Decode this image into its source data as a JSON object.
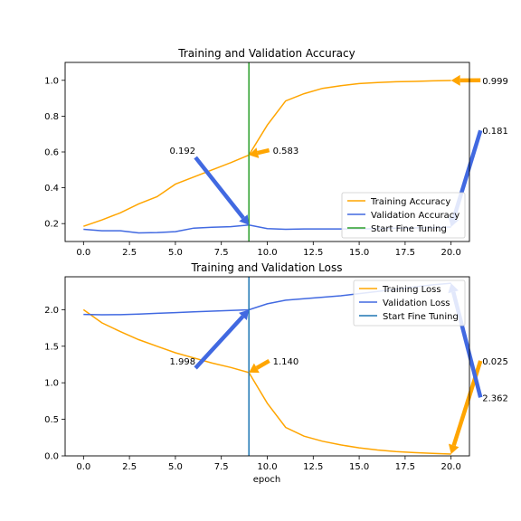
{
  "chart_data": [
    {
      "type": "line",
      "title": "Training and Validation Accuracy",
      "xlabel": "",
      "ylabel": "",
      "xlim": [
        -1,
        21
      ],
      "ylim": [
        0.1,
        1.1
      ],
      "xticks": [
        "0.0",
        "2.5",
        "5.0",
        "7.5",
        "10.0",
        "12.5",
        "15.0",
        "17.5",
        "20.0"
      ],
      "yticks": [
        "0.2",
        "0.4",
        "0.6",
        "0.8",
        "1.0"
      ],
      "x": [
        0,
        1,
        2,
        3,
        4,
        5,
        6,
        7,
        8,
        9,
        10,
        11,
        12,
        13,
        14,
        15,
        16,
        17,
        18,
        19,
        20
      ],
      "series": [
        {
          "name": "Training Accuracy",
          "color": "#ffa500",
          "values": [
            0.185,
            0.22,
            0.26,
            0.31,
            0.35,
            0.42,
            0.46,
            0.5,
            0.54,
            0.583,
            0.75,
            0.885,
            0.925,
            0.955,
            0.97,
            0.982,
            0.988,
            0.992,
            0.994,
            0.997,
            0.999
          ]
        },
        {
          "name": "Validation Accuracy",
          "color": "#4169e1",
          "values": [
            0.168,
            0.16,
            0.16,
            0.148,
            0.15,
            0.155,
            0.175,
            0.18,
            0.183,
            0.192,
            0.172,
            0.168,
            0.17,
            0.17,
            0.17,
            0.17,
            0.172,
            0.174,
            0.176,
            0.178,
            0.181
          ]
        }
      ],
      "vline": {
        "name": "Start Fine Tuning",
        "x": 9,
        "color": "#2ca02c"
      },
      "legend": "lower-right",
      "annotations": [
        {
          "text": "0.999",
          "color": "#ffa500",
          "at": [
            20,
            0.999
          ],
          "text_at": [
            21.7,
            1.0
          ]
        },
        {
          "text": "0.181",
          "color": "#4169e1",
          "at": [
            20,
            0.181
          ],
          "text_at": [
            21.7,
            0.72
          ]
        },
        {
          "text": "0.583",
          "color": "#ffa500",
          "at": [
            9,
            0.583
          ],
          "text_at": [
            10.3,
            0.61
          ]
        },
        {
          "text": "0.192",
          "color": "#4169e1",
          "at": [
            9,
            0.192
          ],
          "text_at": [
            5.7,
            0.61
          ]
        }
      ]
    },
    {
      "type": "line",
      "title": "Training and Validation Loss",
      "xlabel": "epoch",
      "ylabel": "",
      "xlim": [
        -1,
        21
      ],
      "ylim": [
        0,
        2.45
      ],
      "xticks": [
        "0.0",
        "2.5",
        "5.0",
        "7.5",
        "10.0",
        "12.5",
        "15.0",
        "17.5",
        "20.0"
      ],
      "yticks": [
        "0.0",
        "0.5",
        "1.0",
        "1.5",
        "2.0"
      ],
      "x": [
        0,
        1,
        2,
        3,
        4,
        5,
        6,
        7,
        8,
        9,
        10,
        11,
        12,
        13,
        14,
        15,
        16,
        17,
        18,
        19,
        20
      ],
      "series": [
        {
          "name": "Training Loss",
          "color": "#ffa500",
          "values": [
            2.0,
            1.82,
            1.7,
            1.59,
            1.5,
            1.41,
            1.34,
            1.27,
            1.21,
            1.14,
            0.72,
            0.39,
            0.27,
            0.2,
            0.15,
            0.11,
            0.08,
            0.06,
            0.045,
            0.035,
            0.025
          ]
        },
        {
          "name": "Validation Loss",
          "color": "#4169e1",
          "values": [
            1.935,
            1.93,
            1.932,
            1.94,
            1.95,
            1.96,
            1.97,
            1.98,
            1.99,
            1.998,
            2.08,
            2.13,
            2.15,
            2.17,
            2.19,
            2.22,
            2.25,
            2.28,
            2.31,
            2.34,
            2.362
          ]
        }
      ],
      "vline": {
        "name": "Start Fine Tuning",
        "x": 9,
        "color": "#1f77b4"
      },
      "legend": "upper-right",
      "annotations": [
        {
          "text": "0.025",
          "color": "#ffa500",
          "at": [
            20,
            0.025
          ],
          "text_at": [
            21.7,
            1.3
          ]
        },
        {
          "text": "2.362",
          "color": "#4169e1",
          "at": [
            20,
            2.362
          ],
          "text_at": [
            21.7,
            0.8
          ]
        },
        {
          "text": "1.140",
          "color": "#ffa500",
          "at": [
            9,
            1.14
          ],
          "text_at": [
            10.3,
            1.3
          ]
        },
        {
          "text": "1.998",
          "color": "#4169e1",
          "at": [
            9,
            1.998
          ],
          "text_at": [
            5.7,
            1.3
          ]
        }
      ]
    }
  ]
}
